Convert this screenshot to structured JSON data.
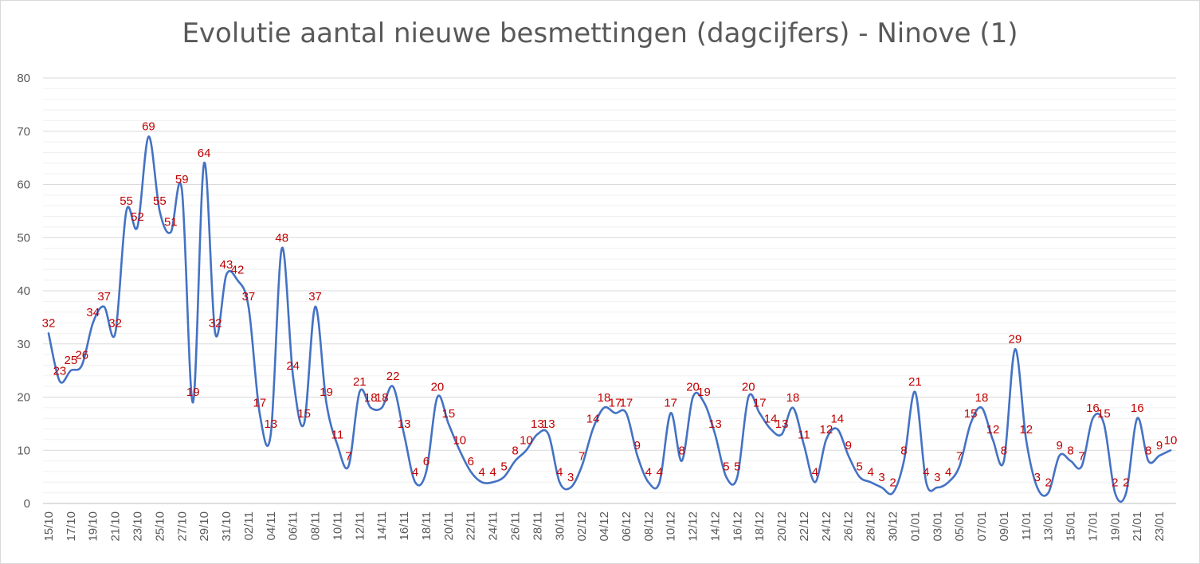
{
  "chart_data": {
    "type": "line",
    "title": "Evolutie aantal nieuwe besmettingen (dagcijfers) - Ninove (1)",
    "xlabel": "",
    "ylabel": "",
    "ylim": [
      0,
      80
    ],
    "y_ticks": [
      0,
      10,
      20,
      30,
      40,
      50,
      60,
      70,
      80
    ],
    "minor_grid_step": 2,
    "grid": true,
    "legend": "none",
    "smooth": true,
    "colors": {
      "line": "#4472c4",
      "data_label": "#c00000",
      "grid": "#d9d9d9",
      "text": "#595959"
    },
    "x": [
      "15/10",
      "16/10",
      "17/10",
      "18/10",
      "19/10",
      "20/10",
      "21/10",
      "22/10",
      "23/10",
      "24/10",
      "25/10",
      "26/10",
      "27/10",
      "28/10",
      "29/10",
      "30/10",
      "31/10",
      "01/11",
      "02/11",
      "03/11",
      "04/11",
      "05/11",
      "06/11",
      "07/11",
      "08/11",
      "09/11",
      "10/11",
      "11/11",
      "12/11",
      "13/11",
      "14/11",
      "15/11",
      "16/11",
      "17/11",
      "18/11",
      "19/11",
      "20/11",
      "21/11",
      "22/11",
      "23/11",
      "24/11",
      "25/11",
      "26/11",
      "27/11",
      "28/11",
      "29/11",
      "30/11",
      "01/12",
      "02/12",
      "03/12",
      "04/12",
      "05/12",
      "06/12",
      "07/12",
      "08/12",
      "09/12",
      "10/12",
      "11/12",
      "12/12",
      "13/12",
      "14/12",
      "15/12",
      "16/12",
      "17/12",
      "18/12",
      "19/12",
      "20/12",
      "21/12",
      "22/12",
      "23/12",
      "24/12",
      "25/12",
      "26/12",
      "27/12",
      "28/12",
      "29/12",
      "30/12",
      "31/12",
      "01/01",
      "02/01",
      "03/01",
      "04/01",
      "05/01",
      "06/01",
      "07/01",
      "08/01",
      "09/01",
      "10/01",
      "11/01",
      "12/01",
      "13/01",
      "14/01",
      "15/01",
      "16/01",
      "17/01",
      "18/01",
      "19/01",
      "20/01",
      "21/01",
      "22/01",
      "23/01",
      "24/01"
    ],
    "x_tick_labels": [
      "15/10",
      "17/10",
      "19/10",
      "21/10",
      "23/10",
      "25/10",
      "27/10",
      "29/10",
      "31/10",
      "02/11",
      "04/11",
      "06/11",
      "08/11",
      "10/11",
      "12/11",
      "14/11",
      "16/11",
      "18/11",
      "20/11",
      "22/11",
      "24/11",
      "26/11",
      "28/11",
      "30/11",
      "02/12",
      "04/12",
      "06/12",
      "08/12",
      "10/12",
      "12/12",
      "14/12",
      "16/12",
      "18/12",
      "20/12",
      "22/12",
      "24/12",
      "26/12",
      "28/12",
      "30/12",
      "01/01",
      "03/01",
      "05/01",
      "07/01",
      "09/01",
      "11/01",
      "13/01",
      "15/01",
      "17/01",
      "19/01",
      "21/01",
      "23/01"
    ],
    "series": [
      {
        "values": [
          32,
          23,
          25,
          26,
          34,
          37,
          32,
          55,
          52,
          69,
          55,
          51,
          59,
          19,
          64,
          32,
          43,
          42,
          37,
          17,
          13,
          48,
          24,
          15,
          37,
          19,
          11,
          7,
          21,
          18,
          18,
          22,
          13,
          4,
          6,
          20,
          15,
          10,
          6,
          4,
          4,
          5,
          8,
          10,
          13,
          13,
          4,
          3,
          7,
          14,
          18,
          17,
          17,
          9,
          4,
          4,
          17,
          8,
          20,
          19,
          13,
          5,
          5,
          20,
          17,
          14,
          13,
          18,
          11,
          4,
          12,
          14,
          9,
          5,
          4,
          3,
          2,
          8,
          21,
          4,
          3,
          4,
          7,
          15,
          18,
          12,
          8,
          29,
          12,
          3,
          2,
          9,
          8,
          7,
          16,
          15,
          2,
          2,
          16,
          8,
          9,
          10
        ]
      }
    ]
  }
}
